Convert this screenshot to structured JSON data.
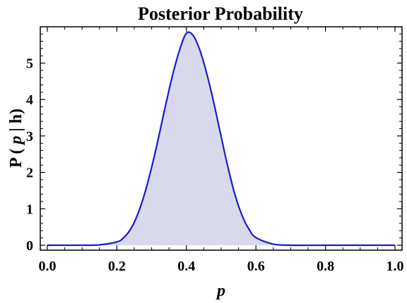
{
  "chart_data": {
    "type": "area",
    "title": "Posterior Probability",
    "xlabel": "p",
    "ylabel": "P ( p | h)",
    "ylabel_parts": {
      "prefix": "P ( ",
      "var": "p",
      "suffix": " | h)"
    },
    "xlim": [
      0.0,
      1.0
    ],
    "ylim": [
      0,
      5.9
    ],
    "x_ticks": [
      "0.0",
      "0.2",
      "0.4",
      "0.6",
      "0.8",
      "1.0"
    ],
    "y_ticks": [
      "0",
      "1",
      "2",
      "3",
      "4",
      "5"
    ],
    "grid": false,
    "series": [
      {
        "x": [
          0.0,
          0.05,
          0.1,
          0.15,
          0.2,
          0.22,
          0.24,
          0.26,
          0.28,
          0.3,
          0.32,
          0.34,
          0.36,
          0.38,
          0.4,
          0.42,
          0.44,
          0.46,
          0.48,
          0.5,
          0.52,
          0.54,
          0.56,
          0.58,
          0.6,
          0.65,
          0.7,
          0.8,
          0.9,
          1.0
        ],
        "values": [
          0.0,
          0.0,
          0.0,
          0.01,
          0.09,
          0.21,
          0.45,
          0.85,
          1.42,
          2.14,
          2.96,
          3.84,
          4.66,
          5.35,
          5.82,
          5.75,
          5.32,
          4.66,
          3.86,
          2.98,
          2.12,
          1.38,
          0.82,
          0.44,
          0.21,
          0.03,
          0.0,
          0.0,
          0.0,
          0.0
        ]
      }
    ],
    "colors": {
      "line": "#1a1ad0",
      "fill": "#d9d9ec"
    }
  }
}
